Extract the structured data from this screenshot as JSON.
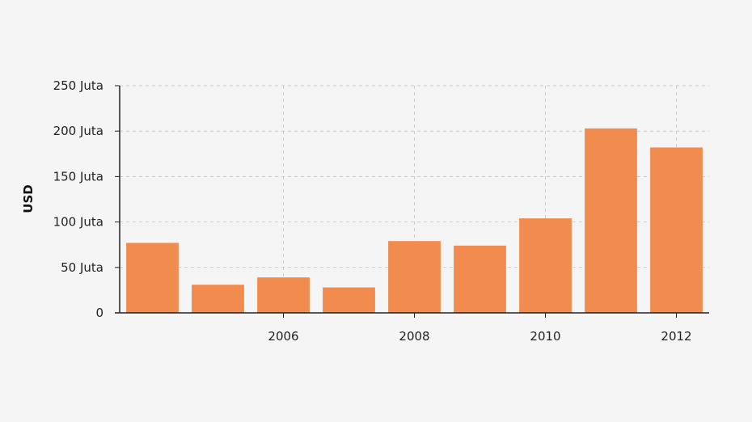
{
  "chart_data": {
    "type": "bar",
    "title": "",
    "xlabel": "",
    "ylabel": "USD",
    "x": [
      2004,
      2005,
      2006,
      2007,
      2008,
      2009,
      2010,
      2011,
      2012
    ],
    "values": [
      77000000,
      31000000,
      39000000,
      28000000,
      79000000,
      74000000,
      104000000,
      203000000,
      182000000
    ],
    "ylim": [
      0,
      250000000
    ],
    "xlim": [
      2003.5,
      2012.5
    ],
    "y_ticks": [
      0,
      50000000,
      100000000,
      150000000,
      200000000,
      250000000
    ],
    "y_tick_labels": [
      "0",
      "50 Juta",
      "100 Juta",
      "150 Juta",
      "200 Juta",
      "250 Juta"
    ],
    "x_ticks": [
      2006,
      2008,
      2010,
      2012
    ],
    "x_tick_labels": [
      "2006",
      "2008",
      "2010",
      "2012"
    ],
    "grid": true,
    "bar_color": "#f28b4e",
    "grid_color": "#cccccc",
    "axis_color": "#222222"
  }
}
